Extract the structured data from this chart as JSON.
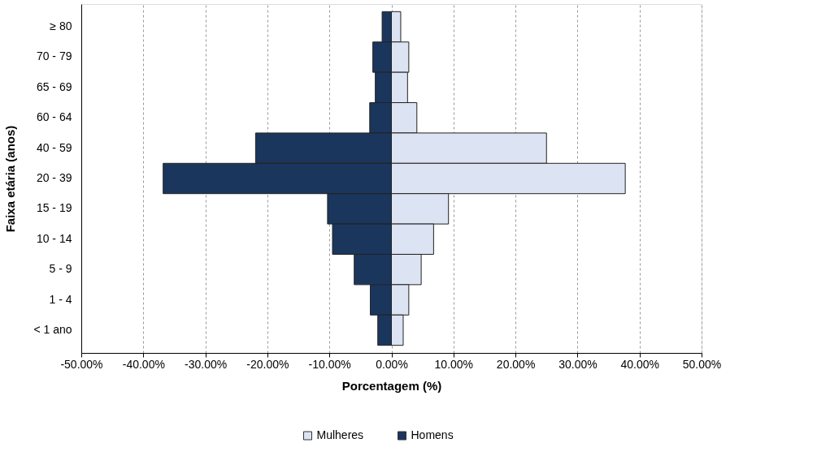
{
  "chart_data": {
    "type": "bar",
    "orientation": "horizontal",
    "stacked": true,
    "xlabel": "Porcentagem (%)",
    "ylabel": "Faixa etária (anos)",
    "categories": [
      "≥ 80",
      "70 - 79",
      "65 - 69",
      "60 - 64",
      "40 - 59",
      "20 - 39",
      "15 - 19",
      "10 - 14",
      "5 - 9",
      "1 - 4",
      "< 1 ano"
    ],
    "series": [
      {
        "name": "Mulheres",
        "color": "#dce3f2",
        "values": [
          1.5,
          2.8,
          2.6,
          4.1,
          25.0,
          37.7,
          9.2,
          6.8,
          4.8,
          2.8,
          1.9
        ]
      },
      {
        "name": "Homens",
        "color": "#1b365d",
        "values": [
          -1.5,
          -3.0,
          -2.6,
          -3.5,
          -21.9,
          -36.8,
          -10.3,
          -9.5,
          -6.0,
          -3.4,
          -2.2
        ]
      }
    ],
    "xlim": [
      -50,
      50
    ],
    "xticks": [
      {
        "value": -50,
        "label": "-50.00%"
      },
      {
        "value": -40,
        "label": "-40.00%"
      },
      {
        "value": -30,
        "label": "-30.00%"
      },
      {
        "value": -20,
        "label": "-20.00%"
      },
      {
        "value": -10,
        "label": "-10.00%"
      },
      {
        "value": 0,
        "label": "0.00%"
      },
      {
        "value": 10,
        "label": "10.00%"
      },
      {
        "value": 20,
        "label": "20.00%"
      },
      {
        "value": 30,
        "label": "30.00%"
      },
      {
        "value": 40,
        "label": "40.00%"
      },
      {
        "value": 50,
        "label": "50.00%"
      }
    ],
    "grid": "x",
    "legend": "bottom"
  }
}
